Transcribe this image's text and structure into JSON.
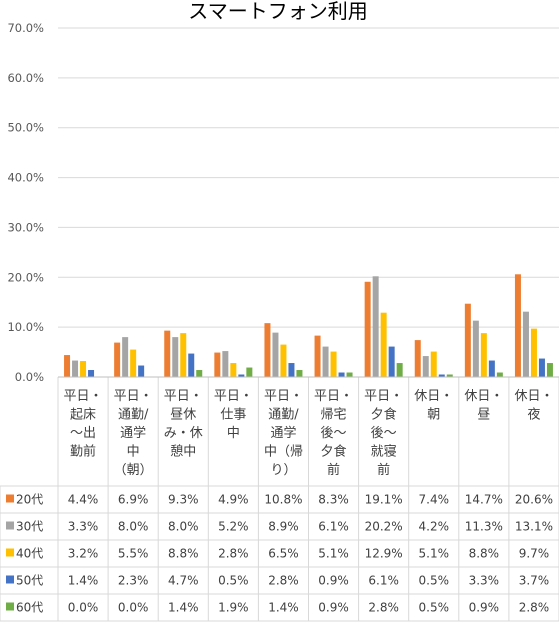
{
  "chart_data": {
    "type": "bar",
    "title": "スマートフォン利用",
    "ylim": [
      0,
      70
    ],
    "y_ticks": [
      0,
      10,
      20,
      30,
      40,
      50,
      60,
      70
    ],
    "y_tick_labels": [
      "0.0%",
      "10.0%",
      "20.0%",
      "30.0%",
      "40.0%",
      "50.0%",
      "60.0%",
      "70.0%"
    ],
    "grid": true,
    "legend_placement": "table-left",
    "categories": [
      [
        "平日・",
        "起床",
        "〜出",
        "勤前"
      ],
      [
        "平日・",
        "通勤/",
        "通学",
        "中",
        "（朝）"
      ],
      [
        "平日・",
        "昼休",
        "み・休",
        "憩中"
      ],
      [
        "平日・",
        "仕事",
        "中"
      ],
      [
        "平日・",
        "通勤/",
        "通学",
        "中（帰",
        "り）"
      ],
      [
        "平日・",
        "帰宅",
        "後〜",
        "夕食",
        "前"
      ],
      [
        "平日・",
        "夕食",
        "後〜",
        "就寝",
        "前"
      ],
      [
        "休日・",
        "朝"
      ],
      [
        "休日・",
        "昼"
      ],
      [
        "休日・",
        "夜"
      ]
    ],
    "series": [
      {
        "name": "20代",
        "color": "#ed7d31",
        "values": [
          4.4,
          6.9,
          9.3,
          4.9,
          10.8,
          8.3,
          19.1,
          7.4,
          14.7,
          20.6
        ],
        "labels": [
          "4.4%",
          "6.9%",
          "9.3%",
          "4.9%",
          "10.8%",
          "8.3%",
          "19.1%",
          "7.4%",
          "14.7%",
          "20.6%"
        ]
      },
      {
        "name": "30代",
        "color": "#a5a5a5",
        "values": [
          3.3,
          8.0,
          8.0,
          5.2,
          8.9,
          6.1,
          20.2,
          4.2,
          11.3,
          13.1
        ],
        "labels": [
          "3.3%",
          "8.0%",
          "8.0%",
          "5.2%",
          "8.9%",
          "6.1%",
          "20.2%",
          "4.2%",
          "11.3%",
          "13.1%"
        ]
      },
      {
        "name": "40代",
        "color": "#ffc000",
        "values": [
          3.2,
          5.5,
          8.8,
          2.8,
          6.5,
          5.1,
          12.9,
          5.1,
          8.8,
          9.7
        ],
        "labels": [
          "3.2%",
          "5.5%",
          "8.8%",
          "2.8%",
          "6.5%",
          "5.1%",
          "12.9%",
          "5.1%",
          "8.8%",
          "9.7%"
        ]
      },
      {
        "name": "50代",
        "color": "#4472c4",
        "values": [
          1.4,
          2.3,
          4.7,
          0.5,
          2.8,
          0.9,
          6.1,
          0.5,
          3.3,
          3.7
        ],
        "labels": [
          "1.4%",
          "2.3%",
          "4.7%",
          "0.5%",
          "2.8%",
          "0.9%",
          "6.1%",
          "0.5%",
          "3.3%",
          "3.7%"
        ]
      },
      {
        "name": "60代",
        "color": "#70ad47",
        "values": [
          0.0,
          0.0,
          1.4,
          1.9,
          1.4,
          0.9,
          2.8,
          0.5,
          0.9,
          2.8
        ],
        "labels": [
          "0.0%",
          "0.0%",
          "1.4%",
          "1.9%",
          "1.4%",
          "0.9%",
          "2.8%",
          "0.5%",
          "0.9%",
          "2.8%"
        ]
      }
    ]
  }
}
